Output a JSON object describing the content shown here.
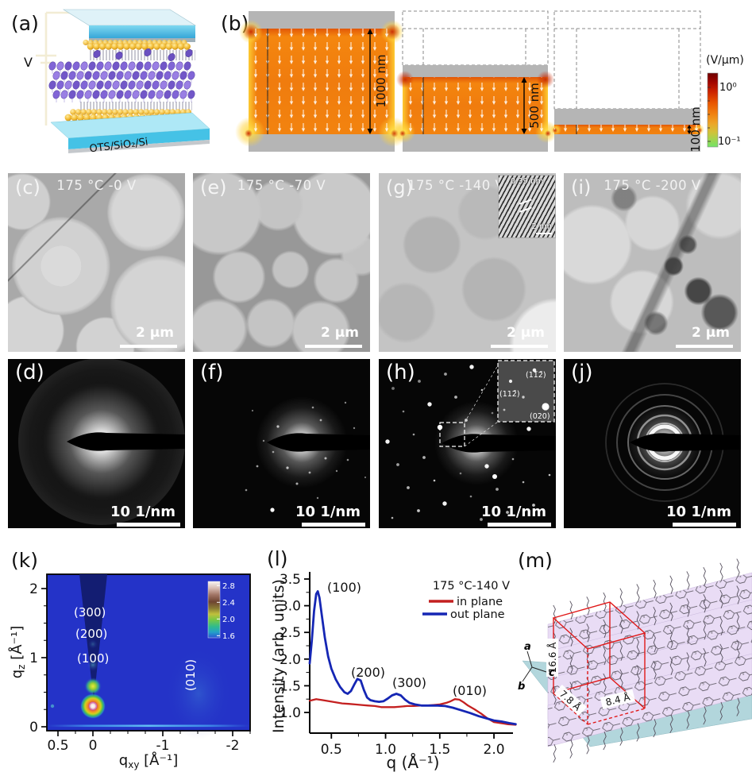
{
  "figure": {
    "panel_a": {
      "label": "(a)",
      "voltage": "V",
      "substrate": "OTS/SiO₂/Si"
    },
    "panel_b": {
      "label": "(b)",
      "sim1_dim": "1000 nm",
      "sim2_dim": "500 nm",
      "sim3_dim": "100 nm",
      "cbar_title": "(V/μm)",
      "cbar_max": "10⁰",
      "cbar_min": "10⁻¹"
    },
    "panel_c": {
      "label": "(c)",
      "title": "175 °C -0 V",
      "scalebar": "2 μm"
    },
    "panel_e": {
      "label": "(e)",
      "title": "175 °C -70 V",
      "scalebar": "2 μm"
    },
    "panel_g": {
      "label": "(g)",
      "title": "175 °C -140 V",
      "scalebar": "2 μm",
      "inset_spacing": "0.39 nm",
      "inset_scalebar": "2 nm"
    },
    "panel_i": {
      "label": "(i)",
      "title": "175 °C -200 V",
      "scalebar": "2 μm"
    },
    "panel_d": {
      "label": "(d)",
      "scalebar": "10 1/nm"
    },
    "panel_f": {
      "label": "(f)",
      "scalebar": "10 1/nm"
    },
    "panel_h": {
      "label": "(h)",
      "scalebar": "10 1/nm",
      "spot1": "(112̄)",
      "spot2": "(11̄2̄)",
      "spot3": "(020)"
    },
    "panel_j": {
      "label": "(j)",
      "scalebar": "10 1/nm"
    },
    "panel_k": {
      "label": "(k)",
      "xlabel_sym": "q",
      "xlabel_sub": "xy",
      "xlabel_unit": " [Å⁻¹]",
      "ylabel_sym": "q",
      "ylabel_sub": "z",
      "ylabel_unit": " [Å⁻¹]",
      "peak_300": "(300)",
      "peak_200": "(200)",
      "peak_100": "(100)",
      "peak_010": "(010)"
    },
    "panel_l": {
      "label": "(l)",
      "xlabel": "q (Å⁻¹)",
      "ylabel": "Intensity (arb. units)",
      "legend_title": "175 °C-140 V",
      "legend_in": "in plane",
      "legend_out": "out plane",
      "peak_100": "(100)",
      "peak_200": "(200)",
      "peak_300": "(300)",
      "peak_010": "(010)"
    },
    "panel_m": {
      "label": "(m)",
      "dim_a": "16.6 Å",
      "dim_b": "7.8 Å",
      "dim_c": "8.4 Å",
      "axis_a": "a",
      "axis_b": "b",
      "axis_c": "c",
      "atom_label": "S"
    }
  },
  "chart_data": [
    {
      "type": "heatmap",
      "panel": "k",
      "xlabel": "q_xy [Å⁻¹]",
      "ylabel": "q_z [Å⁻¹]",
      "xlim": [
        0.66,
        -2.25
      ],
      "ylim": [
        -0.06,
        2.25
      ],
      "xticks": [
        "0.5",
        "0",
        "-1",
        "-2"
      ],
      "yticks": [
        "0",
        "1",
        "2"
      ],
      "colorbar_ticks": [
        "2.8",
        "2.4",
        "2.0",
        "1.6"
      ],
      "colorbar_range": [
        1.5,
        2.9
      ],
      "background_color": "#2433c8",
      "legend_position": "colorbar top-right",
      "peaks": [
        {
          "label": "(100)",
          "qxy": 0,
          "qz": 0.3,
          "intensity": "very strong"
        },
        {
          "label": "(200)",
          "qxy": 0,
          "qz": 0.6,
          "intensity": "strong"
        },
        {
          "label": "(300)",
          "qxy": 0,
          "qz": 0.92,
          "intensity": "weak"
        },
        {
          "label": "(010)",
          "qxy": -1.55,
          "qz": 0.55,
          "intensity": "very weak, broad"
        }
      ]
    },
    {
      "type": "line",
      "panel": "l",
      "title": "175 °C-140 V",
      "xlabel": "q (Å⁻¹)",
      "ylabel": "Intensity (arb. units)",
      "xlim": [
        0.3,
        2.2
      ],
      "ylim": [
        0.61,
        3.6
      ],
      "grid": false,
      "legend_position": "top-right",
      "xticks": [
        "0.5",
        "1.0",
        "1.5",
        "2.0"
      ],
      "yticks": [
        "1.0",
        "1.5",
        "2.0",
        "2.5",
        "3.0",
        "3.5"
      ],
      "peak_annotations": [
        {
          "text": "(100)",
          "q": 0.42,
          "I": 3.35
        },
        {
          "text": "(200)",
          "q": 0.78,
          "I": 1.8
        },
        {
          "text": "(300)",
          "q": 1.12,
          "I": 1.52
        },
        {
          "text": "(010)",
          "q": 1.63,
          "I": 1.42
        }
      ],
      "series": [
        {
          "name": "in plane",
          "color": "#c42020",
          "x": [
            0.3,
            0.36,
            0.42,
            0.48,
            0.54,
            0.6,
            0.66,
            0.72,
            0.78,
            0.84,
            0.9,
            0.96,
            1.02,
            1.08,
            1.14,
            1.2,
            1.26,
            1.32,
            1.38,
            1.44,
            1.5,
            1.56,
            1.6,
            1.64,
            1.68,
            1.72,
            1.76,
            1.82,
            1.88,
            1.94,
            2.0,
            2.06,
            2.13,
            2.2
          ],
          "y": [
            1.22,
            1.25,
            1.23,
            1.21,
            1.19,
            1.17,
            1.16,
            1.15,
            1.14,
            1.13,
            1.12,
            1.1,
            1.1,
            1.1,
            1.11,
            1.12,
            1.12,
            1.13,
            1.13,
            1.14,
            1.15,
            1.18,
            1.21,
            1.25,
            1.24,
            1.19,
            1.13,
            1.06,
            0.98,
            0.89,
            0.82,
            0.8,
            0.78,
            0.77
          ]
        },
        {
          "name": "out plane",
          "color": "#1526b4",
          "x": [
            0.3,
            0.32,
            0.34,
            0.36,
            0.375,
            0.39,
            0.41,
            0.44,
            0.47,
            0.5,
            0.54,
            0.58,
            0.62,
            0.65,
            0.68,
            0.71,
            0.74,
            0.77,
            0.8,
            0.83,
            0.86,
            0.9,
            0.94,
            0.98,
            1.02,
            1.06,
            1.1,
            1.14,
            1.18,
            1.22,
            1.27,
            1.33,
            1.4,
            1.48,
            1.55,
            1.62,
            1.7,
            1.78,
            1.86,
            1.93,
            2.0,
            2.07,
            2.14,
            2.2
          ],
          "y": [
            1.92,
            2.35,
            2.9,
            3.22,
            3.27,
            3.15,
            2.85,
            2.4,
            2.05,
            1.82,
            1.62,
            1.48,
            1.38,
            1.35,
            1.4,
            1.52,
            1.63,
            1.6,
            1.42,
            1.28,
            1.23,
            1.21,
            1.2,
            1.21,
            1.26,
            1.32,
            1.35,
            1.32,
            1.24,
            1.18,
            1.15,
            1.13,
            1.13,
            1.13,
            1.12,
            1.09,
            1.04,
            0.99,
            0.93,
            0.89,
            0.85,
            0.83,
            0.8,
            0.78
          ]
        }
      ]
    }
  ]
}
